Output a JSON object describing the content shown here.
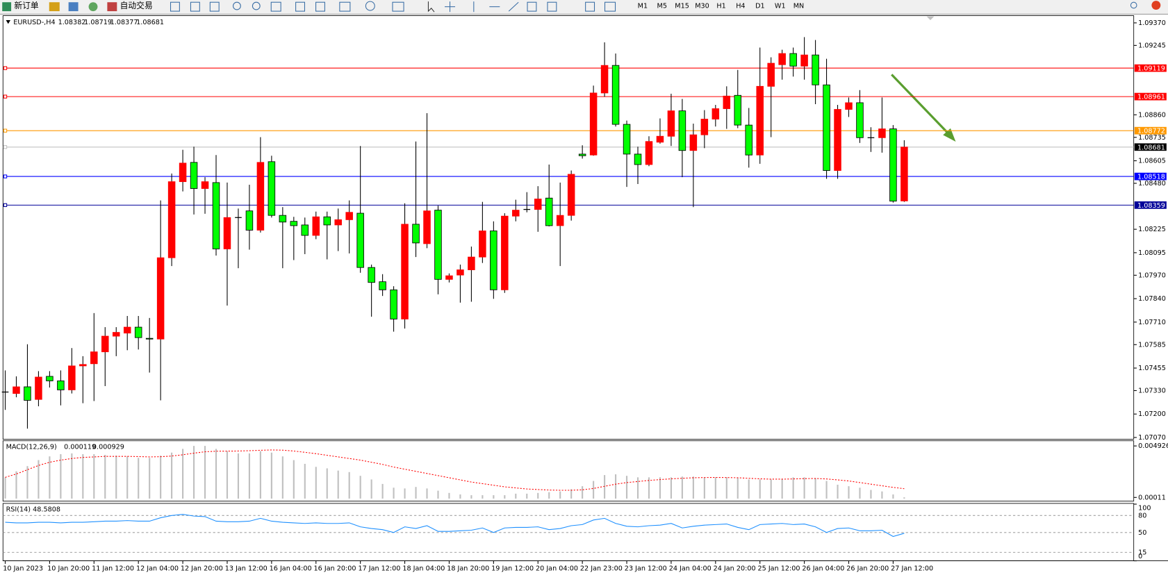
{
  "toolbar": {
    "buttons": [
      "新订单",
      "自动交易"
    ],
    "timeframes": [
      "M1",
      "M5",
      "M15",
      "M30",
      "H1",
      "H4",
      "D1",
      "W1",
      "MN"
    ]
  },
  "chart_data": [
    {
      "type": "candlestick",
      "symbol": "EURUSD-,H4",
      "categories": [
        "10 Jan 2023",
        null,
        null,
        null,
        "10 Jan 20:00",
        null,
        null,
        null,
        "11 Jan 12:00",
        null,
        null,
        null,
        "12 Jan 04:00",
        null,
        null,
        null,
        "12 Jan 20:00",
        null,
        null,
        null,
        "13 Jan 12:00",
        null,
        null,
        null,
        "16 Jan 04:00",
        null,
        null,
        null,
        "16 Jan 20:00",
        null,
        null,
        null,
        "17 Jan 12:00",
        null,
        null,
        null,
        "18 Jan 04:00",
        null,
        null,
        null,
        "18 Jan 20:00",
        null,
        null,
        null,
        "19 Jan 12:00",
        null,
        null,
        null,
        "20 Jan 04:00",
        null,
        null,
        null,
        "22 Jan 23:00",
        null,
        null,
        null,
        "23 Jan 12:00",
        null,
        null,
        null,
        "24 Jan 04:00",
        null,
        null,
        null,
        "24 Jan 20:00",
        null,
        null,
        null,
        "25 Jan 12:00",
        null,
        null,
        null,
        "26 Jan 04:00",
        null,
        null,
        null,
        "26 Jan 20:00",
        null,
        null,
        null,
        "27 Jan 12:00",
        null
      ],
      "open": [
        1.07322,
        1.07314,
        1.07351,
        1.07281,
        1.07409,
        1.07384,
        1.07334,
        1.07467,
        1.07479,
        1.07545,
        1.07632,
        1.07649,
        1.07682,
        1.0762,
        1.07616,
        1.08067,
        1.08489,
        1.08596,
        1.08451,
        1.08484,
        1.08116,
        1.0829,
        1.08327,
        1.0822,
        1.086,
        1.08302,
        1.08269,
        1.08249,
        1.08191,
        1.08294,
        1.08249,
        1.08278,
        1.08314,
        1.08013,
        1.07934,
        1.07889,
        1.07727,
        1.08253,
        1.08145,
        1.08331,
        1.07947,
        1.07971,
        1.08,
        1.08071,
        1.08216,
        1.07889,
        1.08298,
        1.08335,
        1.08335,
        1.08398,
        1.08245,
        1.08302,
        1.08642,
        1.08637,
        1.08981,
        1.09134,
        1.08807,
        1.08642,
        1.08584,
        1.08708,
        1.08741,
        1.08882,
        1.08662,
        1.08749,
        1.08836,
        1.08894,
        1.08968,
        1.08803,
        1.08637,
        1.09018,
        1.09138,
        1.092,
        1.0913,
        1.09192,
        1.09026,
        1.08551,
        1.0889,
        1.08927,
        1.08733,
        1.08733,
        1.08782,
        1.08382
      ],
      "high": [
        1.07442,
        1.07409,
        1.07587,
        1.07438,
        1.07438,
        1.07442,
        1.07566,
        1.07521,
        1.0776,
        1.07682,
        1.07682,
        1.07744,
        1.07744,
        1.07733,
        1.08385,
        1.08534,
        1.08666,
        1.08683,
        1.08514,
        1.08637,
        1.08484,
        1.0834,
        1.08472,
        1.08736,
        1.08633,
        1.08348,
        1.08294,
        1.0829,
        1.08323,
        1.08323,
        1.0834,
        1.08385,
        1.08687,
        1.08029,
        1.07976,
        1.07909,
        1.08369,
        1.08712,
        1.08869,
        1.08356,
        1.0798,
        1.08029,
        1.08129,
        1.08377,
        1.08269,
        1.08314,
        1.08389,
        1.08431,
        1.08464,
        1.08584,
        1.08484,
        1.08551,
        1.08691,
        1.09022,
        1.09262,
        1.092,
        1.08828,
        1.08683,
        1.08741,
        1.0884,
        1.08977,
        1.08948,
        1.08811,
        1.08886,
        1.08915,
        1.09018,
        1.09109,
        1.08898,
        1.09233,
        1.09179,
        1.09221,
        1.09233,
        1.09291,
        1.09275,
        1.09171,
        1.08915,
        1.08956,
        1.08997,
        1.08791,
        1.08956,
        1.08803,
        1.08719
      ],
      "low": [
        1.07223,
        1.07293,
        1.07119,
        1.07243,
        1.07347,
        1.07248,
        1.07314,
        1.0726,
        1.07272,
        1.07355,
        1.07521,
        1.07554,
        1.07558,
        1.0743,
        1.07276,
        1.08021,
        1.08435,
        1.08307,
        1.08311,
        1.08079,
        1.07802,
        1.08009,
        1.08112,
        1.08207,
        1.0829,
        1.08009,
        1.08054,
        1.08087,
        1.0817,
        1.08058,
        1.08104,
        1.08091,
        1.07984,
        1.0774,
        1.07855,
        1.07657,
        1.07674,
        1.08071,
        1.0812,
        1.07864,
        1.0793,
        1.07818,
        1.07823,
        1.08038,
        1.07839,
        1.07872,
        1.08269,
        1.08319,
        1.08211,
        1.08241,
        1.08021,
        1.08273,
        1.08617,
        1.08633,
        1.0896,
        1.08795,
        1.0846,
        1.08476,
        1.08575,
        1.087,
        1.08687,
        1.08514,
        1.08348,
        1.08675,
        1.08795,
        1.08782,
        1.08786,
        1.08567,
        1.08588,
        1.08736,
        1.09055,
        1.09072,
        1.09055,
        1.08919,
        1.08505,
        1.08505,
        1.08848,
        1.08704,
        1.08654,
        1.0865,
        1.08373,
        1.08377
      ],
      "close": [
        1.07322,
        1.07351,
        1.07276,
        1.07405,
        1.07384,
        1.07334,
        1.07467,
        1.07475,
        1.07545,
        1.07632,
        1.07653,
        1.07682,
        1.07624,
        1.07616,
        1.08067,
        1.08489,
        1.08592,
        1.08451,
        1.08489,
        1.08116,
        1.0829,
        1.0829,
        1.0822,
        1.08596,
        1.08302,
        1.08265,
        1.08245,
        1.08191,
        1.08294,
        1.08249,
        1.08278,
        1.08319,
        1.08013,
        1.0793,
        1.07889,
        1.07727,
        1.08253,
        1.08149,
        1.08327,
        1.07947,
        1.07967,
        1.08,
        1.08071,
        1.08216,
        1.07889,
        1.08298,
        1.08331,
        1.08335,
        1.08393,
        1.08245,
        1.08302,
        1.0853,
        1.08633,
        1.08981,
        1.09134,
        1.08807,
        1.08642,
        1.08584,
        1.08712,
        1.08741,
        1.08882,
        1.08662,
        1.08749,
        1.08836,
        1.08894,
        1.08964,
        1.08803,
        1.08637,
        1.09018,
        1.09146,
        1.092,
        1.0913,
        1.09192,
        1.09026,
        1.08551,
        1.0889,
        1.08927,
        1.08733,
        1.08733,
        1.08782,
        1.08381,
        1.08681
      ],
      "up_color": "#ff0000",
      "down_color": "#00ff00",
      "ylim": [
        1.0706,
        1.0941
      ],
      "yticks": [
        {
          "value": 1.0937,
          "label": "1.09370"
        },
        {
          "value": 1.09245,
          "label": "1.09245"
        },
        {
          "value": 1.0886,
          "label": "1.08860"
        },
        {
          "value": 1.08735,
          "label": "1.08735"
        },
        {
          "value": 1.08605,
          "label": "1.08605"
        },
        {
          "value": 1.0848,
          "label": "1.08480"
        },
        {
          "value": 1.08225,
          "label": "1.08225"
        },
        {
          "value": 1.08095,
          "label": "1.08095"
        },
        {
          "value": 1.0797,
          "label": "1.07970"
        },
        {
          "value": 1.0784,
          "label": "1.07840"
        },
        {
          "value": 1.0771,
          "label": "1.07710"
        },
        {
          "value": 1.07585,
          "label": "1.07585"
        },
        {
          "value": 1.07455,
          "label": "1.07455"
        },
        {
          "value": 1.0733,
          "label": "1.07330"
        },
        {
          "value": 1.072,
          "label": "1.07200"
        },
        {
          "value": 1.0707,
          "label": "1.07070"
        }
      ],
      "hlines": [
        {
          "value": 1.09119,
          "color": "#ff0000"
        },
        {
          "value": 1.08961,
          "color": "#ff0000"
        },
        {
          "value": 1.08772,
          "color": "#ff9900"
        },
        {
          "value": 1.08518,
          "color": "#0000ff"
        },
        {
          "value": 1.08359,
          "color": "#000099"
        }
      ],
      "current_color": "#c0c0c0"
    },
    {
      "type": "macd",
      "title": "MACD(12,26,9)",
      "histogram": [
        0.00199,
        0.00255,
        0.00304,
        0.0036,
        0.00395,
        0.00416,
        0.00423,
        0.00416,
        0.00416,
        0.00409,
        0.00402,
        0.00395,
        0.00381,
        0.00381,
        0.00402,
        0.0043,
        0.00465,
        0.00493,
        0.00493,
        0.00465,
        0.00444,
        0.00423,
        0.00423,
        0.00444,
        0.0043,
        0.00395,
        0.0036,
        0.00325,
        0.00297,
        0.00283,
        0.00262,
        0.00248,
        0.00213,
        0.00179,
        0.00137,
        0.00102,
        0.00095,
        0.00109,
        0.00095,
        0.00074,
        0.00053,
        0.00039,
        0.00032,
        0.00032,
        0.00032,
        0.00032,
        0.00046,
        0.00046,
        0.00053,
        0.0006,
        0.00067,
        0.00088,
        0.00116,
        0.00165,
        0.0022,
        0.00227,
        0.00213,
        0.00199,
        0.00199,
        0.00199,
        0.00199,
        0.00206,
        0.00206,
        0.00199,
        0.00199,
        0.00199,
        0.00192,
        0.00179,
        0.00179,
        0.00179,
        0.00185,
        0.00199,
        0.00199,
        0.00192,
        0.00165,
        0.0013,
        0.00116,
        0.00102,
        0.00081,
        0.00067,
        0.00039,
        0.000119
      ],
      "signal": [
        0.00199,
        0.0023,
        0.0027,
        0.0031,
        0.0034,
        0.0036,
        0.00375,
        0.00385,
        0.0039,
        0.00395,
        0.00395,
        0.00395,
        0.00393,
        0.0039,
        0.00392,
        0.00398,
        0.0041,
        0.00425,
        0.00438,
        0.00443,
        0.00444,
        0.00445,
        0.00448,
        0.00452,
        0.00455,
        0.00453,
        0.00445,
        0.00433,
        0.0042,
        0.00405,
        0.0039,
        0.00375,
        0.0036,
        0.0034,
        0.0032,
        0.00295,
        0.00275,
        0.00255,
        0.00235,
        0.00215,
        0.00195,
        0.00175,
        0.00155,
        0.0014,
        0.00125,
        0.0011,
        0.001,
        0.0009,
        0.00085,
        0.0008,
        0.00078,
        0.00078,
        0.00082,
        0.00095,
        0.00115,
        0.00135,
        0.0015,
        0.0016,
        0.0017,
        0.00178,
        0.00185,
        0.0019,
        0.00195,
        0.00197,
        0.00198,
        0.00197,
        0.00195,
        0.0019,
        0.00185,
        0.00182,
        0.00182,
        0.00184,
        0.00187,
        0.00188,
        0.00184,
        0.00175,
        0.00165,
        0.0015,
        0.00135,
        0.0012,
        0.00105,
        0.000929
      ],
      "histogram_color": "#c0c0c0",
      "signal_color": "#ff0000",
      "ylim": [
        -0.00024,
        0.00541
      ],
      "yticks": [
        0.004926,
        0.00011
      ]
    },
    {
      "type": "line",
      "title": "RSI(14)",
      "values": [
        68,
        67,
        67,
        68,
        68,
        67,
        68,
        68,
        69,
        70,
        70,
        71,
        70,
        70,
        76,
        80,
        82,
        79,
        78,
        70,
        69,
        69,
        70,
        75,
        70,
        68,
        67,
        66,
        67,
        66,
        66,
        67,
        60,
        57,
        55,
        50,
        60,
        57,
        62,
        52,
        52,
        53,
        54,
        58,
        50,
        58,
        59,
        59,
        60,
        55,
        57,
        62,
        64,
        72,
        75,
        66,
        61,
        60,
        62,
        63,
        66,
        58,
        61,
        63,
        64,
        65,
        59,
        55,
        64,
        65,
        66,
        64,
        65,
        60,
        50,
        57,
        58,
        53,
        53,
        54,
        43,
        48.5808
      ],
      "color": "#1e90ff",
      "ylim": [
        0,
        100
      ],
      "yticks": [
        0,
        15,
        50,
        80,
        100
      ]
    }
  ]
}
